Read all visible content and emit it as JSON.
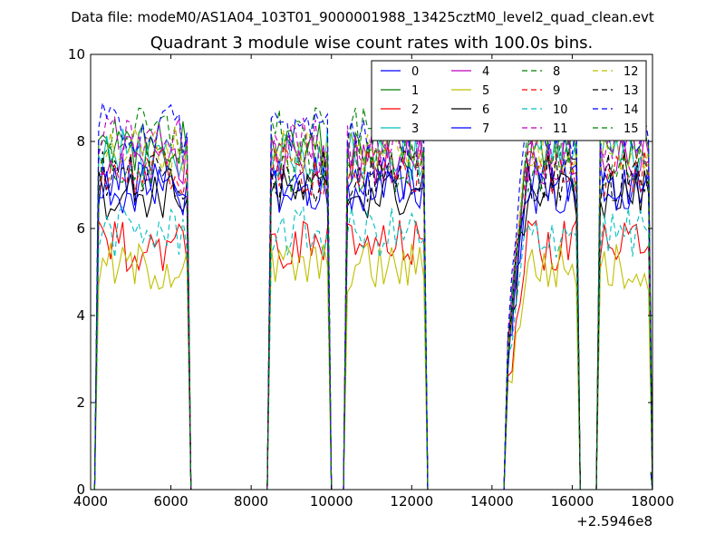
{
  "chart_data": {
    "type": "line",
    "suptitle": "Data file: modeM0/AS1A04_103T01_9000001988_13425cztM0_level2_quad_clean.evt",
    "title": "Quadrant 3 module wise count rates with 100.0s bins.",
    "xlabel": "",
    "ylabel": "",
    "x_offset_label": "+2.5946e8",
    "xlim": [
      4000,
      18000
    ],
    "ylim": [
      0,
      10
    ],
    "xticks": [
      4000,
      6000,
      8000,
      10000,
      12000,
      14000,
      16000,
      18000
    ],
    "yticks": [
      0,
      2,
      4,
      6,
      8,
      10
    ],
    "bin_seconds": 100,
    "legend_position": "top-right",
    "segments": [
      [
        4200,
        6400
      ],
      [
        8500,
        9900
      ],
      [
        10400,
        12300
      ],
      [
        14400,
        16100
      ],
      [
        16700,
        17900
      ]
    ],
    "series": [
      {
        "name": "0",
        "color": "#0000ff",
        "dashed": false,
        "level": 7.1
      },
      {
        "name": "1",
        "color": "#008000",
        "dashed": false,
        "level": 7.9
      },
      {
        "name": "2",
        "color": "#ff0000",
        "dashed": false,
        "level": 5.6
      },
      {
        "name": "3",
        "color": "#00bfbf",
        "dashed": false,
        "level": 7.7
      },
      {
        "name": "4",
        "color": "#bf00bf",
        "dashed": false,
        "level": 7.6
      },
      {
        "name": "5",
        "color": "#bfbf00",
        "dashed": false,
        "level": 5.1
      },
      {
        "name": "6",
        "color": "#000000",
        "dashed": false,
        "level": 6.8
      },
      {
        "name": "7",
        "color": "#0000ff",
        "dashed": false,
        "level": 6.9
      },
      {
        "name": "8",
        "color": "#008000",
        "dashed": true,
        "level": 8.2
      },
      {
        "name": "9",
        "color": "#ff0000",
        "dashed": true,
        "level": 7.3
      },
      {
        "name": "10",
        "color": "#00bfbf",
        "dashed": true,
        "level": 5.9
      },
      {
        "name": "11",
        "color": "#bf00bf",
        "dashed": true,
        "level": 8.0
      },
      {
        "name": "12",
        "color": "#bfbf00",
        "dashed": true,
        "level": 7.8
      },
      {
        "name": "13",
        "color": "#000000",
        "dashed": true,
        "level": 7.2
      },
      {
        "name": "14",
        "color": "#0000ff",
        "dashed": true,
        "level": 8.3
      },
      {
        "name": "15",
        "color": "#008000",
        "dashed": true,
        "level": 7.4
      }
    ]
  }
}
